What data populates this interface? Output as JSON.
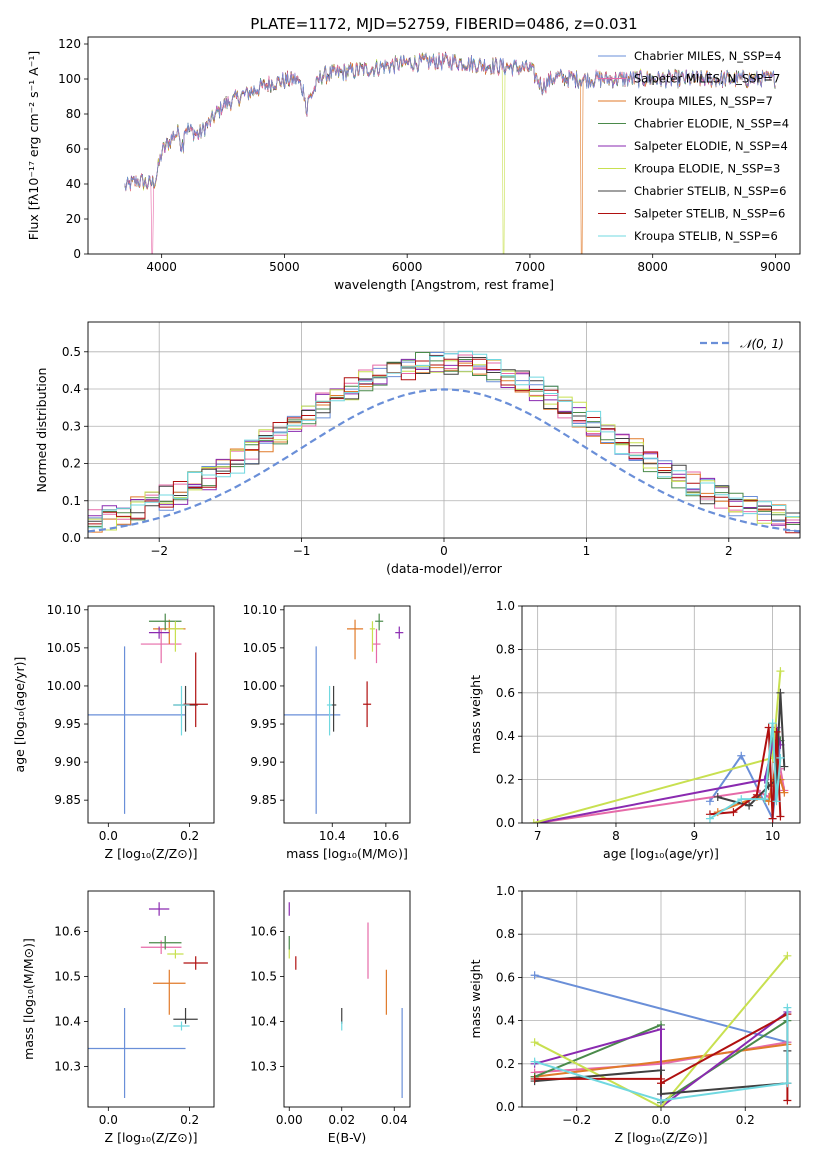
{
  "figure_title": "PLATE=1172, MJD=52759, FIBERID=0486, z=0.031",
  "colors": {
    "chabrier_miles": "#6a8fd8",
    "salpeter_miles": "#e66aa8",
    "kroupa_miles": "#e07a2a",
    "chabrier_elodie": "#4a8a4a",
    "salpeter_elodie": "#8a2ab0",
    "kroupa_elodie": "#c8e050",
    "chabrier_stelib": "#404040",
    "salpeter_stelib": "#b01010",
    "kroupa_stelib": "#70d8e0",
    "gaussian": "#6a8fd8",
    "grid": "#b0b0b0"
  },
  "chart_data": [
    {
      "id": "spectrum",
      "type": "line",
      "title": "PLATE=1172, MJD=52759, FIBERID=0486, z=0.031",
      "xlabel": "wavelength [Angstrom, rest frame]",
      "ylabel": "Flux [fλ10⁻¹⁷ erg cm⁻² s⁻¹ A⁻¹]",
      "xlim": [
        3400,
        9200
      ],
      "ylim": [
        0,
        124
      ],
      "xticks": [
        "4000",
        "5000",
        "6000",
        "7000",
        "8000",
        "9000"
      ],
      "yticks": [
        "0",
        "20",
        "40",
        "60",
        "80",
        "100",
        "120"
      ],
      "grid": false,
      "legend_position": "right",
      "legend": [
        "Chabrier MILES, N_SSP=4",
        "Salpeter MILES, N_SSP=7",
        "Kroupa MILES, N_SSP=7",
        "Chabrier ELODIE, N_SSP=4",
        "Salpeter ELODIE, N_SSP=4",
        "Kroupa ELODIE, N_SSP=3",
        "Chabrier STELIB, N_SSP=6",
        "Salpeter STELIB, N_SSP=6",
        "Kroupa STELIB, N_SSP=6"
      ],
      "continuum": {
        "x": [
          3700,
          3800,
          3900,
          3950,
          4000,
          4100,
          4200,
          4300,
          4400,
          4500,
          4700,
          4900,
          5100,
          5200,
          5300,
          5500,
          5700,
          5900,
          6000,
          6200,
          6400,
          6600,
          6800,
          7000,
          7100,
          7200,
          7400,
          7600,
          8000,
          8400,
          8800,
          9000
        ],
        "y": [
          38,
          42,
          40,
          42,
          58,
          68,
          72,
          68,
          76,
          85,
          92,
          98,
          100,
          88,
          102,
          104,
          106,
          108,
          109,
          110,
          110,
          108,
          107,
          106,
          96,
          101,
          100,
          100,
          100,
          100,
          100,
          100
        ]
      },
      "drops": [
        {
          "x": 3925,
          "series": "salpeter_miles"
        },
        {
          "x": 6785,
          "series": "kroupa_elodie"
        },
        {
          "x": 7420,
          "series": "kroupa_miles"
        }
      ]
    },
    {
      "id": "residuals",
      "type": "histogram",
      "xlabel": "(data-model)/error",
      "ylabel": "Normed distribution",
      "xlim": [
        -2.5,
        2.5
      ],
      "ylim": [
        0,
        0.58
      ],
      "xticks": [
        "−2",
        "−1",
        "0",
        "1",
        "2"
      ],
      "yticks": [
        "0.0",
        "0.1",
        "0.2",
        "0.3",
        "0.4",
        "0.5"
      ],
      "grid": true,
      "legend_position": "top-right",
      "legend": [
        "𝒩(0, 1)"
      ],
      "bin_width": 0.1
    },
    {
      "id": "age_vs_Z",
      "type": "errorbar",
      "xlabel": "Z [log₁₀(Z/Z⊙)]",
      "ylabel": "age  [log₁₀(age/yr)]",
      "xlim": [
        -0.05,
        0.26
      ],
      "ylim": [
        9.82,
        10.105
      ],
      "xticks": [
        "0.0",
        "0.2"
      ],
      "yticks": [
        "9.85",
        "9.90",
        "9.95",
        "10.00",
        "10.05",
        "10.10"
      ],
      "points": [
        {
          "series": "chabrier_miles",
          "x": 0.04,
          "y": 9.962,
          "xerr": [
            0.15,
            0.15
          ],
          "yerr": [
            0.13,
            0.09
          ]
        },
        {
          "series": "salpeter_miles",
          "x": 0.13,
          "y": 10.055,
          "xerr": [
            0.05,
            0.05
          ],
          "yerr": [
            0.025,
            0.02
          ]
        },
        {
          "series": "kroupa_miles",
          "x": 0.15,
          "y": 10.075,
          "xerr": [
            0.04,
            0.04
          ],
          "yerr": [
            0.02,
            0.012
          ]
        },
        {
          "series": "chabrier_elodie",
          "x": 0.14,
          "y": 10.085,
          "xerr": [
            0.04,
            0.04
          ],
          "yerr": [
            0.012,
            0.01
          ]
        },
        {
          "series": "salpeter_elodie",
          "x": 0.125,
          "y": 10.07,
          "xerr": [
            0.025,
            0.025
          ],
          "yerr": [
            0.008,
            0.008
          ]
        },
        {
          "series": "kroupa_elodie",
          "x": 0.165,
          "y": 10.075,
          "xerr": [
            0.02,
            0.02
          ],
          "yerr": [
            0.03,
            0.01
          ]
        },
        {
          "series": "chabrier_stelib",
          "x": 0.19,
          "y": 9.975,
          "xerr": [
            0.03,
            0.03
          ],
          "yerr": [
            0.035,
            0.025
          ]
        },
        {
          "series": "salpeter_stelib",
          "x": 0.215,
          "y": 9.976,
          "xerr": [
            0.03,
            0.03
          ],
          "yerr": [
            0.03,
            0.068
          ]
        },
        {
          "series": "kroupa_stelib",
          "x": 0.18,
          "y": 9.975,
          "xerr": [
            0.02,
            0.02
          ],
          "yerr": [
            0.04,
            0.025
          ]
        }
      ]
    },
    {
      "id": "age_vs_mass",
      "type": "errorbar",
      "xlabel": "mass [log₁₀(M/M⊙)]",
      "ylabel": "",
      "xlim": [
        10.22,
        10.69
      ],
      "ylim": [
        9.82,
        10.105
      ],
      "xticks": [
        "10.4",
        "10.6"
      ],
      "yticks": [
        "9.85",
        "9.90",
        "9.95",
        "10.00",
        "10.05",
        "10.10"
      ],
      "points": [
        {
          "series": "chabrier_miles",
          "x": 10.34,
          "y": 9.962,
          "xerr": [
            0.12,
            0.09
          ],
          "yerr": [
            0.13,
            0.09
          ]
        },
        {
          "series": "salpeter_miles",
          "x": 10.565,
          "y": 10.055,
          "xerr": [
            0.015,
            0.015
          ],
          "yerr": [
            0.025,
            0.02
          ]
        },
        {
          "series": "kroupa_miles",
          "x": 10.485,
          "y": 10.075,
          "xerr": [
            0.03,
            0.03
          ],
          "yerr": [
            0.04,
            0.012
          ]
        },
        {
          "series": "chabrier_elodie",
          "x": 10.575,
          "y": 10.085,
          "xerr": [
            0.015,
            0.015
          ],
          "yerr": [
            0.012,
            0.01
          ]
        },
        {
          "series": "salpeter_elodie",
          "x": 10.65,
          "y": 10.07,
          "xerr": [
            0.015,
            0.015
          ],
          "yerr": [
            0.008,
            0.008
          ]
        },
        {
          "series": "kroupa_elodie",
          "x": 10.55,
          "y": 10.075,
          "xerr": [
            0.01,
            0.01
          ],
          "yerr": [
            0.03,
            0.01
          ]
        },
        {
          "series": "chabrier_stelib",
          "x": 10.405,
          "y": 9.975,
          "xerr": [
            0.01,
            0.01
          ],
          "yerr": [
            0.035,
            0.025
          ]
        },
        {
          "series": "salpeter_stelib",
          "x": 10.53,
          "y": 9.976,
          "xerr": [
            0.015,
            0.015
          ],
          "yerr": [
            0.03,
            0.03
          ]
        },
        {
          "series": "kroupa_stelib",
          "x": 10.39,
          "y": 9.975,
          "xerr": [
            0.01,
            0.01
          ],
          "yerr": [
            0.04,
            0.025
          ]
        }
      ]
    },
    {
      "id": "weight_vs_age",
      "type": "line",
      "xlabel": "age  [log₁₀(age/yr)]",
      "ylabel": "mass weight",
      "xlim": [
        6.8,
        10.35
      ],
      "ylim": [
        0,
        1
      ],
      "xticks": [
        "7",
        "8",
        "9",
        "10"
      ],
      "yticks": [
        "0.0",
        "0.2",
        "0.4",
        "0.6",
        "0.8",
        "1.0"
      ],
      "grid": true,
      "series": [
        {
          "series": "chabrier_miles",
          "x": [
            9.2,
            9.6,
            10.0,
            10.1
          ],
          "y": [
            0.1,
            0.31,
            0.02,
            0.38
          ]
        },
        {
          "series": "salpeter_miles",
          "x": [
            7.0,
            9.8,
            9.95,
            10.05,
            10.1,
            10.15
          ],
          "y": [
            0.0,
            0.15,
            0.12,
            0.2,
            0.25,
            0.15
          ]
        },
        {
          "series": "kroupa_miles",
          "x": [
            9.3,
            9.8,
            9.95,
            10.05,
            10.1,
            10.15
          ],
          "y": [
            0.05,
            0.12,
            0.1,
            0.28,
            0.2,
            0.14
          ]
        },
        {
          "series": "chabrier_elodie",
          "x": [
            9.9,
            10.0,
            10.1
          ],
          "y": [
            0.11,
            0.38,
            0.38
          ]
        },
        {
          "series": "salpeter_elodie",
          "x": [
            7.0,
            9.9,
            10.05,
            10.1
          ],
          "y": [
            0.0,
            0.2,
            0.44,
            0.36
          ]
        },
        {
          "series": "kroupa_elodie",
          "x": [
            6.95,
            10.0,
            10.1
          ],
          "y": [
            0.0,
            0.3,
            0.7
          ]
        },
        {
          "series": "chabrier_stelib",
          "x": [
            9.3,
            9.7,
            9.95,
            10.05,
            10.1,
            10.15
          ],
          "y": [
            0.12,
            0.08,
            0.17,
            0.2,
            0.6,
            0.26
          ]
        },
        {
          "series": "salpeter_stelib",
          "x": [
            9.2,
            9.5,
            9.8,
            9.95,
            10.0,
            10.05,
            10.1
          ],
          "y": [
            0.04,
            0.05,
            0.13,
            0.44,
            0.02,
            0.42,
            0.03
          ]
        },
        {
          "series": "kroupa_stelib",
          "x": [
            9.2,
            9.6,
            9.9,
            10.0,
            10.05,
            10.1
          ],
          "y": [
            0.02,
            0.11,
            0.11,
            0.46,
            0.1,
            0.3
          ]
        }
      ]
    },
    {
      "id": "mass_vs_Z",
      "type": "errorbar",
      "xlabel": "Z [log₁₀(Z/Z⊙)]",
      "ylabel": "mass [log₁₀(M/M⊙)]",
      "xlim": [
        -0.05,
        0.26
      ],
      "ylim": [
        10.21,
        10.69
      ],
      "xticks": [
        "0.0",
        "0.2"
      ],
      "yticks": [
        "10.3",
        "10.4",
        "10.5",
        "10.6"
      ],
      "points": [
        {
          "series": "chabrier_miles",
          "x": 0.04,
          "y": 10.34,
          "xerr": [
            0.15,
            0.15
          ],
          "yerr": [
            0.11,
            0.09
          ]
        },
        {
          "series": "salpeter_miles",
          "x": 0.13,
          "y": 10.565,
          "xerr": [
            0.05,
            0.05
          ],
          "yerr": [
            0.015,
            0.015
          ]
        },
        {
          "series": "kroupa_miles",
          "x": 0.15,
          "y": 10.485,
          "xerr": [
            0.04,
            0.04
          ],
          "yerr": [
            0.07,
            0.03
          ]
        },
        {
          "series": "chabrier_elodie",
          "x": 0.14,
          "y": 10.575,
          "xerr": [
            0.04,
            0.04
          ],
          "yerr": [
            0.015,
            0.015
          ]
        },
        {
          "series": "salpeter_elodie",
          "x": 0.125,
          "y": 10.65,
          "xerr": [
            0.025,
            0.025
          ],
          "yerr": [
            0.015,
            0.015
          ]
        },
        {
          "series": "kroupa_elodie",
          "x": 0.165,
          "y": 10.55,
          "xerr": [
            0.02,
            0.02
          ],
          "yerr": [
            0.01,
            0.01
          ]
        },
        {
          "series": "chabrier_stelib",
          "x": 0.19,
          "y": 10.405,
          "xerr": [
            0.03,
            0.03
          ],
          "yerr": [
            0.01,
            0.025
          ]
        },
        {
          "series": "salpeter_stelib",
          "x": 0.215,
          "y": 10.53,
          "xerr": [
            0.03,
            0.03
          ],
          "yerr": [
            0.015,
            0.015
          ]
        },
        {
          "series": "kroupa_stelib",
          "x": 0.18,
          "y": 10.39,
          "xerr": [
            0.02,
            0.02
          ],
          "yerr": [
            0.01,
            0.01
          ]
        }
      ]
    },
    {
      "id": "mass_vs_ebv",
      "type": "errorbar",
      "xlabel": "E(B-V)",
      "ylabel": "",
      "xlim": [
        -0.002,
        0.046
      ],
      "ylim": [
        10.21,
        10.69
      ],
      "xticks": [
        "0.00",
        "0.02",
        "0.04"
      ],
      "yticks": [
        "10.3",
        "10.4",
        "10.5",
        "10.6"
      ],
      "points": [
        {
          "series": "chabrier_miles",
          "x": 0.043,
          "y": 10.34,
          "xerr": [
            0,
            0
          ],
          "yerr": [
            0.11,
            0.09
          ]
        },
        {
          "series": "salpeter_miles",
          "x": 0.03,
          "y": 10.565,
          "xerr": [
            0,
            0
          ],
          "yerr": [
            0.07,
            0.055
          ]
        },
        {
          "series": "kroupa_miles",
          "x": 0.037,
          "y": 10.485,
          "xerr": [
            0,
            0
          ],
          "yerr": [
            0.07,
            0.03
          ]
        },
        {
          "series": "chabrier_elodie",
          "x": 0.0,
          "y": 10.575,
          "xerr": [
            0,
            0
          ],
          "yerr": [
            0.015,
            0.015
          ]
        },
        {
          "series": "salpeter_elodie",
          "x": 0.0,
          "y": 10.65,
          "xerr": [
            0,
            0
          ],
          "yerr": [
            0.015,
            0.015
          ]
        },
        {
          "series": "kroupa_elodie",
          "x": 0.0,
          "y": 10.55,
          "xerr": [
            0,
            0
          ],
          "yerr": [
            0.01,
            0.01
          ]
        },
        {
          "series": "chabrier_stelib",
          "x": 0.02,
          "y": 10.405,
          "xerr": [
            0,
            0
          ],
          "yerr": [
            0.01,
            0.025
          ]
        },
        {
          "series": "salpeter_stelib",
          "x": 0.0025,
          "y": 10.53,
          "xerr": [
            0,
            0
          ],
          "yerr": [
            0.015,
            0.015
          ]
        },
        {
          "series": "kroupa_stelib",
          "x": 0.02,
          "y": 10.39,
          "xerr": [
            0,
            0
          ],
          "yerr": [
            0.01,
            0.01
          ]
        }
      ]
    },
    {
      "id": "weight_vs_Z",
      "type": "line",
      "xlabel": "Z [log₁₀(Z/Z⊙)]",
      "ylabel": "mass weight",
      "xlim": [
        -0.33,
        0.33
      ],
      "ylim": [
        0,
        1
      ],
      "xticks": [
        "−0.2",
        "0.0",
        "0.2"
      ],
      "yticks": [
        "0.0",
        "0.2",
        "0.4",
        "0.6",
        "0.8",
        "1.0"
      ],
      "grid": true,
      "series": [
        {
          "series": "chabrier_miles",
          "x": [
            -0.3,
            0.3
          ],
          "y": [
            0.61,
            0.3
          ]
        },
        {
          "series": "salpeter_miles",
          "x": [
            -0.3,
            0.0,
            0.3
          ],
          "y": [
            0.16,
            0.2,
            0.3
          ]
        },
        {
          "series": "kroupa_miles",
          "x": [
            -0.3,
            0.0,
            0.3
          ],
          "y": [
            0.14,
            0.21,
            0.29
          ]
        },
        {
          "series": "chabrier_elodie",
          "x": [
            -0.3,
            0.0,
            0.0,
            0.3
          ],
          "y": [
            0.14,
            0.38,
            0.02,
            0.4
          ]
        },
        {
          "series": "salpeter_elodie",
          "x": [
            -0.3,
            0.0,
            0.0,
            0.3
          ],
          "y": [
            0.2,
            0.36,
            0.0,
            0.44
          ]
        },
        {
          "series": "kroupa_elodie",
          "x": [
            -0.3,
            0.0,
            0.3
          ],
          "y": [
            0.3,
            0.0,
            0.7
          ]
        },
        {
          "series": "chabrier_stelib",
          "x": [
            -0.3,
            0.0,
            0.0,
            0.3,
            0.3
          ],
          "y": [
            0.12,
            0.17,
            0.06,
            0.11,
            0.26
          ]
        },
        {
          "series": "salpeter_stelib",
          "x": [
            -0.3,
            0.0,
            0.0,
            0.3,
            0.3
          ],
          "y": [
            0.13,
            0.13,
            0.11,
            0.43,
            0.03
          ]
        },
        {
          "series": "kroupa_stelib",
          "x": [
            -0.3,
            0.0,
            0.3,
            0.3
          ],
          "y": [
            0.21,
            0.03,
            0.11,
            0.46
          ]
        }
      ]
    }
  ]
}
